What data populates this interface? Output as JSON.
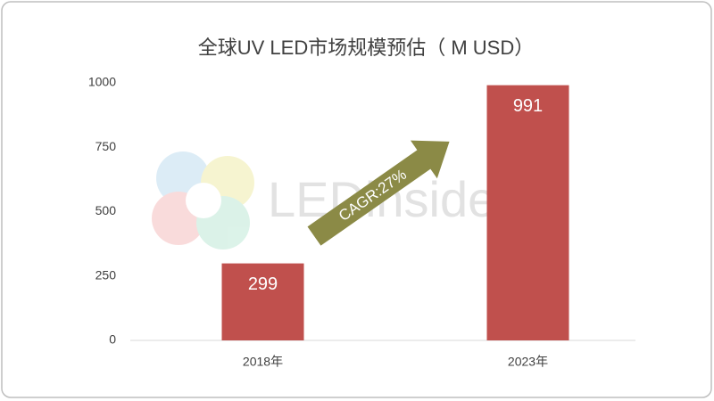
{
  "chart_data": {
    "type": "bar",
    "title": "全球UV LED市场规模预估（ M USD）",
    "categories": [
      "2018年",
      "2023年"
    ],
    "values": [
      299,
      991
    ],
    "color": "#c0504d",
    "ylim": [
      0,
      1000
    ],
    "yticks": [
      0,
      250,
      500,
      750,
      1000
    ],
    "grid": false,
    "annotation": "CAGR:27%",
    "watermark": "LEDinside"
  }
}
